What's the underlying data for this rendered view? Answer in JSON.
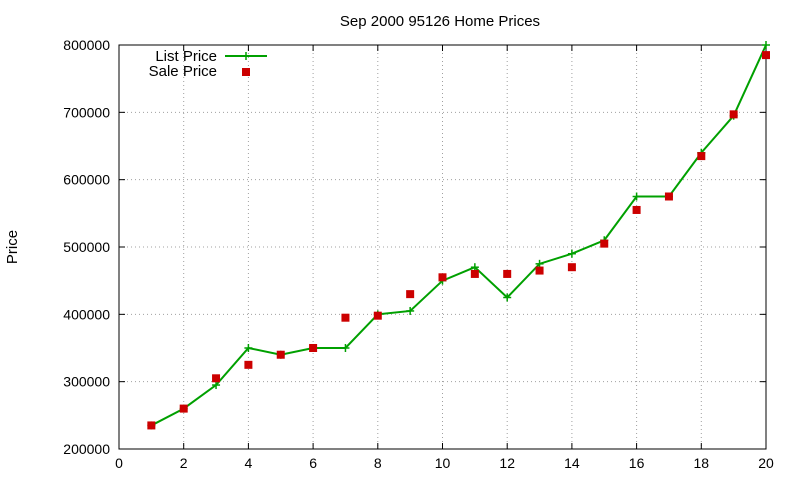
{
  "chart_data": {
    "type": "line",
    "title": "Sep 2000 95126 Home Prices",
    "xlabel": "",
    "ylabel": "Price",
    "xlim": [
      0,
      20
    ],
    "ylim": [
      200000,
      800000
    ],
    "xticks": [
      0,
      2,
      4,
      6,
      8,
      10,
      12,
      14,
      16,
      18,
      20
    ],
    "yticks": [
      200000,
      300000,
      400000,
      500000,
      600000,
      700000,
      800000
    ],
    "xtick_labels": [
      "0",
      "2",
      "4",
      "6",
      "8",
      "10",
      "12",
      "14",
      "16",
      "18",
      "20"
    ],
    "ytick_labels": [
      "200000",
      "300000",
      "400000",
      "500000",
      "600000",
      "700000",
      "800000"
    ],
    "grid": true,
    "legend_position": "top-left",
    "series": [
      {
        "name": "List Price",
        "style": "line-with-plus-markers",
        "color": "#00a000",
        "x": [
          1,
          2,
          3,
          4,
          5,
          6,
          7,
          8,
          9,
          10,
          11,
          12,
          13,
          14,
          15,
          16,
          17,
          18,
          19,
          20
        ],
        "y": [
          235000,
          260000,
          295000,
          350000,
          340000,
          350000,
          350000,
          400000,
          405000,
          450000,
          470000,
          425000,
          475000,
          490000,
          510000,
          575000,
          575000,
          640000,
          695000,
          800000
        ]
      },
      {
        "name": "Sale Price",
        "style": "square-markers",
        "color": "#cc0000",
        "x": [
          1,
          2,
          3,
          4,
          5,
          6,
          7,
          8,
          9,
          10,
          11,
          12,
          13,
          14,
          15,
          16,
          17,
          18,
          19,
          20
        ],
        "y": [
          235000,
          260000,
          305000,
          325000,
          340000,
          350000,
          395000,
          398000,
          430000,
          455000,
          460000,
          460000,
          465000,
          470000,
          505000,
          555000,
          575000,
          635000,
          697000,
          785000
        ]
      }
    ]
  }
}
